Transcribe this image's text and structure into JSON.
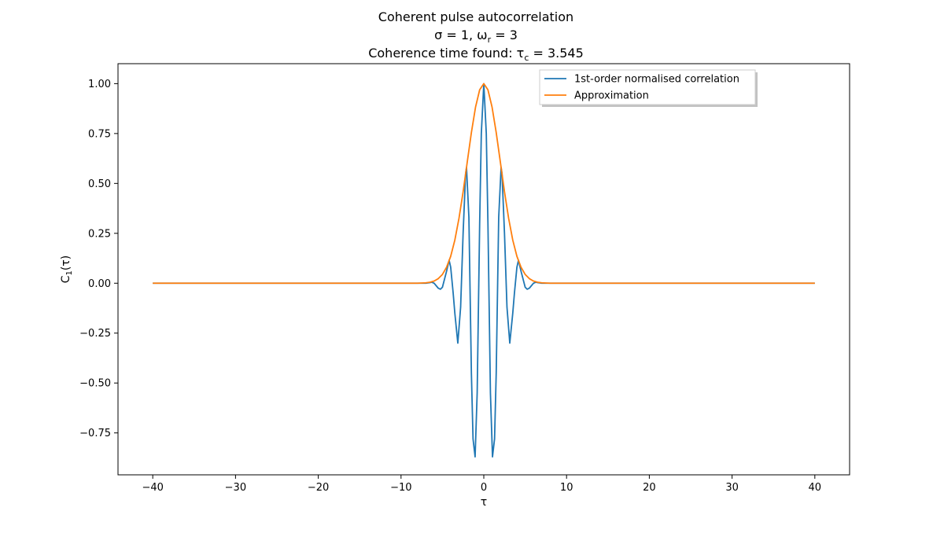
{
  "chart_data": {
    "type": "line",
    "title_lines": [
      "Coherent pulse autocorrelation",
      "σ = 1, ω_r = 3",
      "Coherence time found: τ_c = 3.545"
    ],
    "xlabel": "τ",
    "ylabel": "C_1(τ)",
    "xlim": [
      -44.2,
      44.2
    ],
    "ylim": [
      -0.96,
      1.1
    ],
    "x_ticks": [
      -40,
      -30,
      -20,
      -10,
      0,
      10,
      20,
      30,
      40
    ],
    "x_tick_labels": [
      "−40",
      "−30",
      "−20",
      "−10",
      "0",
      "10",
      "20",
      "30",
      "40"
    ],
    "y_ticks": [
      1.0,
      0.75,
      0.5,
      0.25,
      0.0,
      -0.25,
      -0.5,
      -0.75
    ],
    "y_tick_labels": [
      "1.00",
      "0.75",
      "0.50",
      "0.25",
      "0.00",
      "−0.25",
      "−0.50",
      "−0.75"
    ],
    "grid": false,
    "legend_position": "top-right",
    "series": [
      {
        "name": "1st-order normalised correlation",
        "color": "#1f77b4",
        "x": [
          -40,
          -10,
          -8,
          -7,
          -6.5,
          -6.28,
          -6,
          -5.5,
          -5.24,
          -5,
          -4.5,
          -4.19,
          -4,
          -3.7,
          -3.5,
          -3.14,
          -2.8,
          -2.5,
          -2.2,
          -2.09,
          -1.8,
          -1.5,
          -1.3,
          -1.05,
          -0.8,
          -0.5,
          -0.3,
          0,
          0.3,
          0.5,
          0.8,
          1.05,
          1.3,
          1.5,
          1.8,
          2.09,
          2.2,
          2.5,
          2.8,
          3.14,
          3.5,
          3.7,
          4,
          4.19,
          4.5,
          5,
          5.24,
          5.5,
          6,
          6.28,
          6.5,
          7,
          8,
          10,
          40
        ],
        "y": [
          0,
          0,
          0,
          0,
          0.003,
          0.005,
          0,
          -0.025,
          -0.03,
          -0.02,
          0.06,
          0.115,
          0.08,
          -0.05,
          -0.15,
          -0.3,
          -0.12,
          0.25,
          0.55,
          0.58,
          0.33,
          -0.45,
          -0.78,
          -0.87,
          -0.55,
          0.3,
          0.75,
          1.0,
          0.75,
          0.3,
          -0.55,
          -0.87,
          -0.78,
          -0.45,
          0.33,
          0.58,
          0.55,
          0.25,
          -0.12,
          -0.3,
          -0.15,
          -0.05,
          0.08,
          0.115,
          0.06,
          -0.02,
          -0.03,
          -0.025,
          0,
          0.005,
          0.003,
          0,
          0,
          0,
          0
        ]
      },
      {
        "name": "Approximation",
        "color": "#ff7f0e",
        "x": [
          -40,
          -10,
          -8,
          -7,
          -6.5,
          -6,
          -5.5,
          -5,
          -4.5,
          -4,
          -3.5,
          -3,
          -2.5,
          -2,
          -1.5,
          -1,
          -0.5,
          0,
          0.5,
          1,
          1.5,
          2,
          2.5,
          3,
          3.5,
          4,
          4.5,
          5,
          5.5,
          6,
          6.5,
          7,
          8,
          10,
          40
        ],
        "y": [
          0,
          0,
          0,
          0.002,
          0.005,
          0.011,
          0.023,
          0.044,
          0.08,
          0.135,
          0.216,
          0.325,
          0.458,
          0.607,
          0.755,
          0.882,
          0.969,
          1.0,
          0.969,
          0.882,
          0.755,
          0.607,
          0.458,
          0.325,
          0.216,
          0.135,
          0.08,
          0.044,
          0.023,
          0.011,
          0.005,
          0.002,
          0,
          0,
          0
        ]
      }
    ]
  }
}
